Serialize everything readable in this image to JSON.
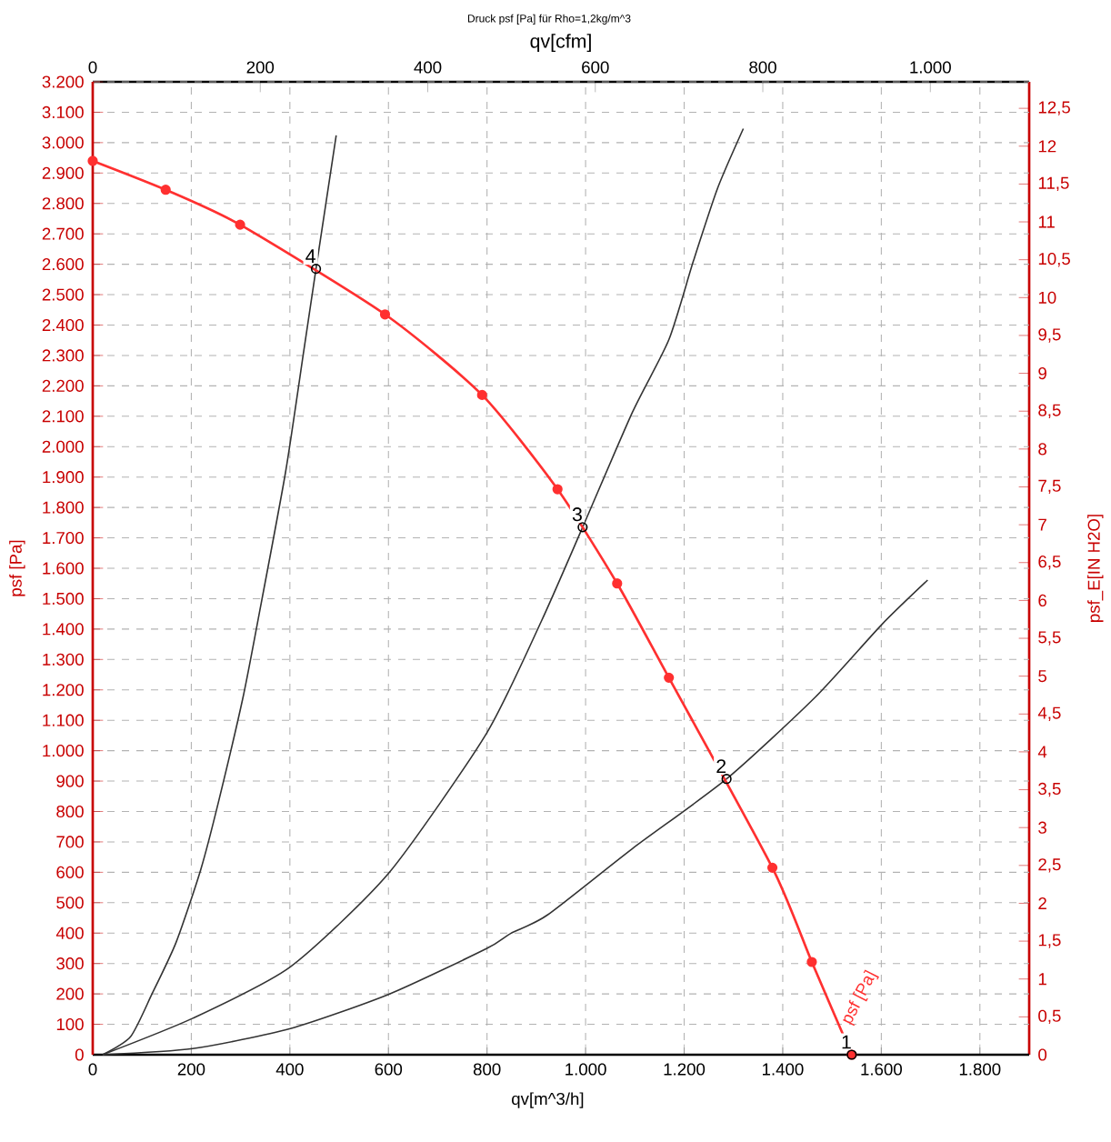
{
  "chart_data": {
    "type": "line",
    "title": "Druck psf [Pa] für Rho=1,2kg/m^3",
    "xlabel": "qv[m^3/h]",
    "x2label": "qv[cfm]",
    "ylabel": "psf [Pa]",
    "y2label": "psf_E[IN H2O]",
    "xlim": [
      0,
      1900
    ],
    "xticks": [
      0,
      200,
      400,
      600,
      800,
      {
        "value": 1000,
        "label": "1.000"
      },
      {
        "value": 1200,
        "label": "1.200"
      },
      {
        "value": 1400,
        "label": "1.400"
      },
      {
        "value": 1600,
        "label": "1.600"
      },
      {
        "value": 1800,
        "label": "1.800"
      }
    ],
    "x2lim": [
      0,
      1118
    ],
    "x2ticks": [
      0,
      200,
      400,
      600,
      800,
      {
        "value": 1000,
        "label": "1.000"
      }
    ],
    "ylim": [
      0,
      3200
    ],
    "yticks": [
      0,
      100,
      200,
      300,
      400,
      500,
      600,
      700,
      800,
      900,
      {
        "value": 1000,
        "label": "1.000"
      },
      {
        "value": 1100,
        "label": "1.100"
      },
      {
        "value": 1200,
        "label": "1.200"
      },
      {
        "value": 1300,
        "label": "1.300"
      },
      {
        "value": 1400,
        "label": "1.400"
      },
      {
        "value": 1500,
        "label": "1.500"
      },
      {
        "value": 1600,
        "label": "1.600"
      },
      {
        "value": 1700,
        "label": "1.700"
      },
      {
        "value": 1800,
        "label": "1.800"
      },
      {
        "value": 1900,
        "label": "1.900"
      },
      {
        "value": 2000,
        "label": "2.000"
      },
      {
        "value": 2100,
        "label": "2.100"
      },
      {
        "value": 2200,
        "label": "2.200"
      },
      {
        "value": 2300,
        "label": "2.300"
      },
      {
        "value": 2400,
        "label": "2.400"
      },
      {
        "value": 2500,
        "label": "2.500"
      },
      {
        "value": 2600,
        "label": "2.600"
      },
      {
        "value": 2700,
        "label": "2.700"
      },
      {
        "value": 2800,
        "label": "2.800"
      },
      {
        "value": 2900,
        "label": "2.900"
      },
      {
        "value": 3000,
        "label": "3.000"
      },
      {
        "value": 3100,
        "label": "3.100"
      },
      {
        "value": 3200,
        "label": "3.200"
      }
    ],
    "y2lim": [
      0,
      12.85
    ],
    "y2ticks": [
      0,
      {
        "value": 0.5,
        "label": "0,5"
      },
      1,
      {
        "value": 1.5,
        "label": "1,5"
      },
      2,
      {
        "value": 2.5,
        "label": "2,5"
      },
      3,
      {
        "value": 3.5,
        "label": "3,5"
      },
      4,
      {
        "value": 4.5,
        "label": "4,5"
      },
      5,
      {
        "value": 5.5,
        "label": "5,5"
      },
      6,
      {
        "value": 6.5,
        "label": "6,5"
      },
      7,
      {
        "value": 7.5,
        "label": "7,5"
      },
      8,
      {
        "value": 8.5,
        "label": "8,5"
      },
      9,
      {
        "value": 9.5,
        "label": "9,5"
      },
      10,
      {
        "value": 10.5,
        "label": "10,5"
      },
      11,
      {
        "value": 11.5,
        "label": "11,5"
      },
      12,
      {
        "value": 12.5,
        "label": "12,5"
      }
    ],
    "grid": true,
    "series": [
      {
        "color": "#333333",
        "marker": "none",
        "x": [
          20,
          77,
          120,
          169,
          219,
          256,
          305,
          336,
          391,
          428,
          453,
          494
        ],
        "values": [
          0,
          60,
          199,
          369,
          608,
          837,
          1176,
          1435,
          1914,
          2313,
          2585,
          3024
        ]
      },
      {
        "color": "#333333",
        "marker": "none",
        "x": [
          20,
          203,
          401,
          601,
          799,
          910,
          994,
          1095,
          1169,
          1219,
          1268,
          1320
        ],
        "values": [
          0,
          120,
          289,
          598,
          1057,
          1425,
          1735,
          2113,
          2352,
          2612,
          2851,
          3046
        ]
      },
      {
        "color": "#333333",
        "marker": "none",
        "x": [
          20,
          203,
          401,
          601,
          799,
          848,
          922,
          1095,
          1286,
          1466,
          1601,
          1694
        ],
        "values": [
          0,
          20,
          86,
          199,
          349,
          399,
          459,
          678,
          907,
          1176,
          1415,
          1561
        ]
      },
      {
        "name": "psf [Pa]",
        "color": "#ff3030",
        "marker": "circle",
        "x": [
          0,
          148,
          299,
          593,
          790,
          943,
          1064,
          1169,
          1379,
          1459,
          1540
        ],
        "values": [
          2940,
          2845,
          2730,
          2435,
          2170,
          1860,
          1550,
          1240,
          615,
          305,
          0
        ]
      },
      {
        "type": "scatter",
        "color": "#000000",
        "marker": "circle",
        "x": [
          1540,
          1286,
          994,
          453
        ],
        "values": [
          0,
          907,
          1735,
          2585
        ]
      }
    ],
    "annotations": [
      {
        "text": "1",
        "x": 1540,
        "y": 0
      },
      {
        "text": "2",
        "x": 1286,
        "y": 907
      },
      {
        "text": "3",
        "x": 994,
        "y": 1735
      },
      {
        "text": "4",
        "x": 453,
        "y": 2585
      }
    ]
  }
}
